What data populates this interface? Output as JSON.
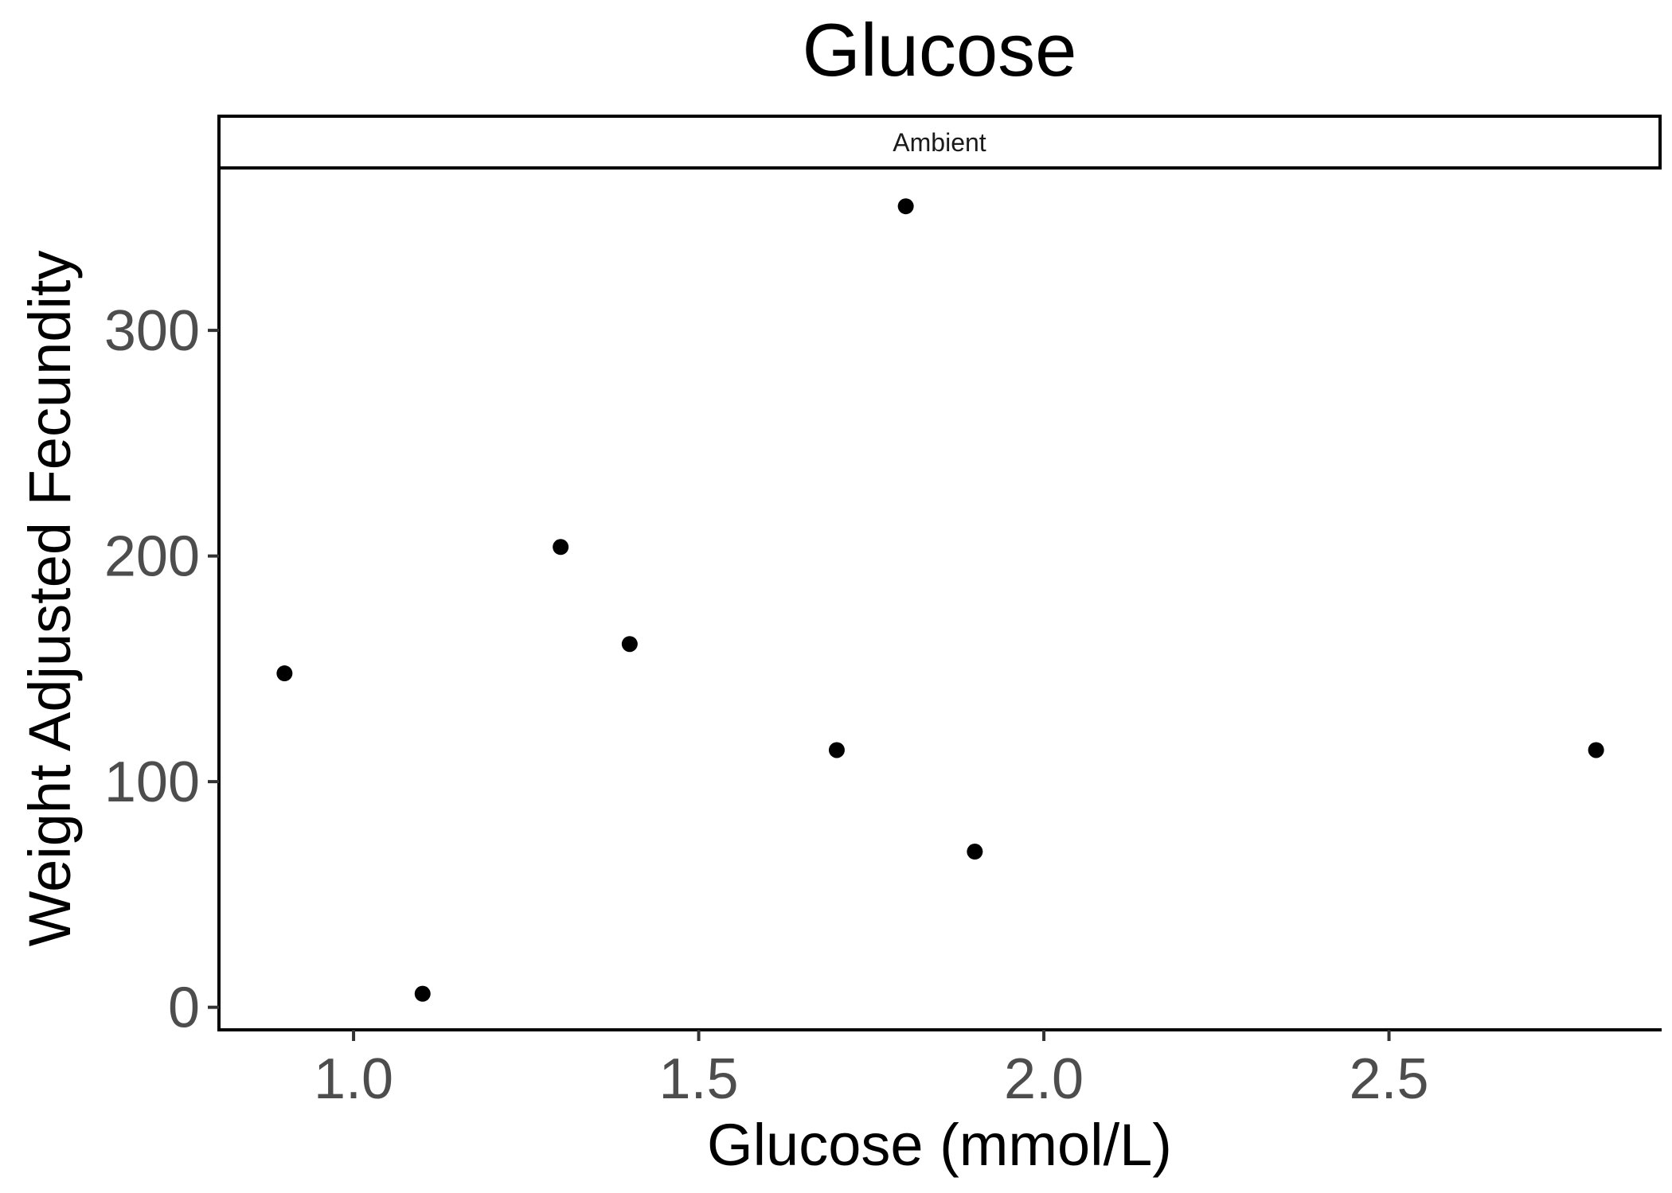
{
  "chart_data": {
    "type": "scatter",
    "title": "Glucose",
    "facet_label": "Ambient",
    "xlabel": "Glucose (mmol/L)",
    "ylabel": "Weight Adjusted Fecundity",
    "xlim": [
      0.805,
      2.895
    ],
    "ylim": [
      -10,
      372
    ],
    "x_ticks": [
      1.0,
      1.5,
      2.0,
      2.5
    ],
    "x_tick_labels": [
      "1.0",
      "1.5",
      "2.0",
      "2.5"
    ],
    "y_ticks": [
      0,
      100,
      200,
      300
    ],
    "y_tick_labels": [
      "0",
      "100",
      "200",
      "300"
    ],
    "grid": false,
    "point_color": "#000000",
    "points": [
      {
        "x": 0.9,
        "y": 148
      },
      {
        "x": 1.1,
        "y": 6
      },
      {
        "x": 1.3,
        "y": 204
      },
      {
        "x": 1.4,
        "y": 161
      },
      {
        "x": 1.7,
        "y": 114
      },
      {
        "x": 1.8,
        "y": 355
      },
      {
        "x": 1.9,
        "y": 69
      },
      {
        "x": 2.8,
        "y": 114
      }
    ]
  }
}
